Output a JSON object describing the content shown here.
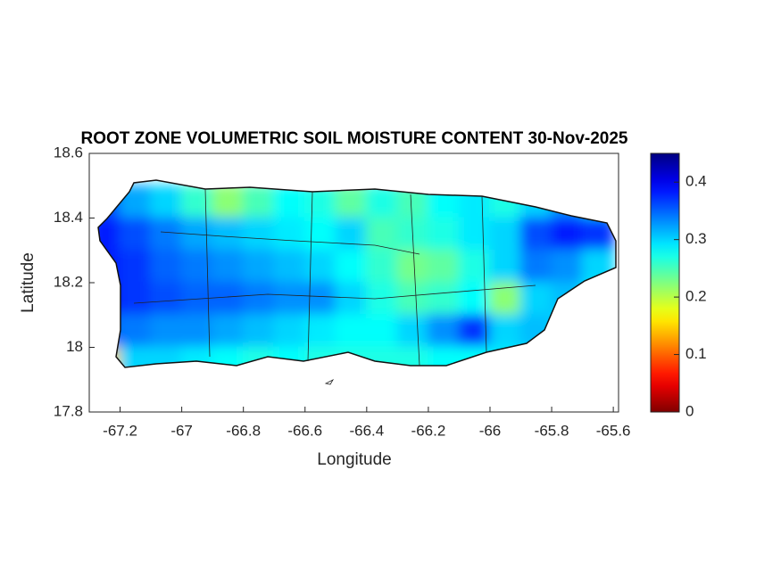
{
  "chart_data": {
    "type": "heatmap",
    "title": "ROOT ZONE VOLUMETRIC SOIL MOISTURE CONTENT 30-Nov-2025",
    "x_label": "Longitude",
    "y_label": "Latitude",
    "xlim": [
      -67.3,
      -65.583
    ],
    "ylim": [
      17.8,
      18.6
    ],
    "xticks": [
      -67.2,
      -67,
      -66.8,
      -66.6,
      -66.4,
      -66.2,
      -66,
      -65.8,
      -65.6
    ],
    "yticks": [
      17.8,
      18,
      18.2,
      18.4,
      18.6
    ],
    "colormap": "jet-reversed",
    "clim": [
      0,
      0.45
    ],
    "cticks": [
      0,
      0.1,
      0.2,
      0.3,
      0.4
    ],
    "x": [
      -67.25,
      -67.15,
      -67.05,
      -66.95,
      -66.85,
      -66.75,
      -66.65,
      -66.55,
      -66.45,
      -66.35,
      -66.25,
      -66.15,
      -66.05,
      -65.95,
      -65.85,
      -65.75,
      -65.65
    ],
    "y": [
      18.45,
      18.35,
      18.25,
      18.15,
      18.05,
      17.95
    ],
    "z": [
      [
        0.36,
        0.32,
        0.3,
        0.26,
        0.22,
        0.25,
        0.28,
        0.27,
        0.24,
        0.27,
        0.25,
        0.28,
        0.29,
        0.27,
        0.3,
        0.33,
        0.3
      ],
      [
        0.38,
        0.36,
        0.34,
        0.32,
        0.31,
        0.3,
        0.29,
        0.28,
        0.3,
        0.25,
        0.26,
        0.27,
        0.29,
        0.3,
        0.36,
        0.38,
        0.37
      ],
      [
        0.38,
        0.37,
        0.35,
        0.34,
        0.33,
        0.32,
        0.31,
        0.3,
        0.28,
        0.26,
        0.23,
        0.24,
        0.27,
        0.3,
        0.34,
        0.33,
        0.3
      ],
      [
        0.38,
        0.37,
        0.36,
        0.35,
        0.35,
        0.34,
        0.33,
        0.33,
        0.3,
        0.27,
        0.25,
        0.26,
        0.28,
        0.22,
        0.3,
        0.31,
        0.29
      ],
      [
        0.35,
        0.34,
        0.33,
        0.33,
        0.32,
        0.31,
        0.3,
        0.29,
        0.28,
        0.28,
        0.3,
        0.33,
        0.37,
        0.3,
        0.31,
        0.3,
        0.28
      ],
      [
        0.15,
        0.3,
        0.3,
        0.29,
        0.28,
        0.27,
        0.28,
        0.27,
        0.27,
        0.27,
        0.27,
        0.28,
        0.28,
        0.29,
        0.3,
        0.3,
        0.3
      ]
    ]
  }
}
